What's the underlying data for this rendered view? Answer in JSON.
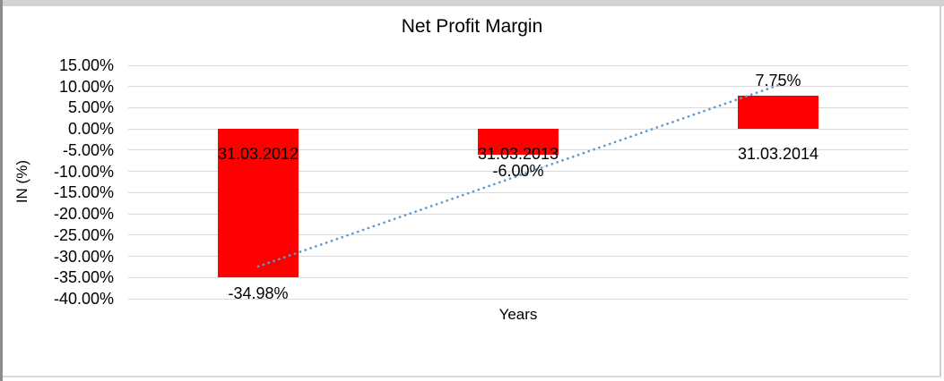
{
  "chart_data": {
    "type": "bar",
    "title": "Net Profit Margin",
    "xlabel": "Years",
    "ylabel": "IN (%)",
    "categories": [
      "31.03.2012",
      "31.03.2013",
      "31.03.2014"
    ],
    "values": [
      -34.98,
      -6.0,
      7.75
    ],
    "data_labels": [
      "-34.98%",
      "-6.00%",
      "7.75%"
    ],
    "ylim": [
      -40,
      15
    ],
    "ytick_step": 5,
    "ytick_labels": [
      "15.00%",
      "10.00%",
      "5.00%",
      "0.00%",
      "-5.00%",
      "-10.00%",
      "-15.00%",
      "-20.00%",
      "-25.00%",
      "-30.00%",
      "-35.00%",
      "-40.00%"
    ],
    "grid": true,
    "legend": "none",
    "bar_color": "#FF0000",
    "gridline_color": "#D9D9D9",
    "text_color": "#000000",
    "trendline": {
      "type": "linear",
      "style": "dotted",
      "color": "#5B9BD5",
      "start_value": -32.4,
      "end_value": 10.3
    }
  }
}
